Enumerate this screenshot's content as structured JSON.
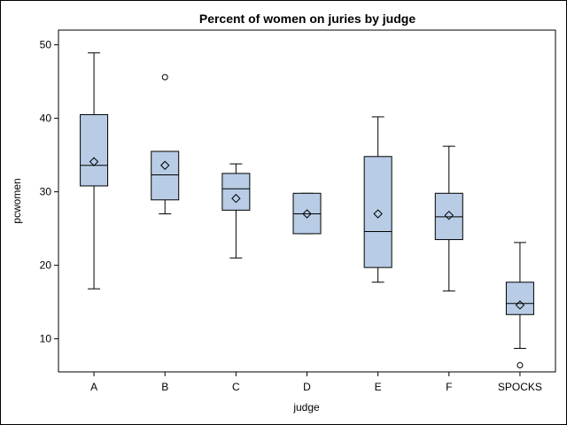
{
  "chart_data": {
    "type": "box",
    "title": "Percent of women on juries by judge",
    "xlabel": "judge",
    "ylabel": "pcwomen",
    "ylim": [
      5.5,
      52
    ],
    "yticks": [
      10,
      20,
      30,
      40,
      50
    ],
    "grid": false,
    "legend": "none",
    "colors": {
      "box_fill": "#b8cce6",
      "stroke": "#000000",
      "background": "#ffffff"
    },
    "categories": [
      "A",
      "B",
      "C",
      "D",
      "E",
      "F",
      "SPOCKS"
    ],
    "boxes": [
      {
        "category": "A",
        "min": 16.8,
        "q1": 30.8,
        "median": 33.6,
        "q3": 40.5,
        "max": 48.9,
        "mean": 34.1,
        "outliers": []
      },
      {
        "category": "B",
        "min": 27.0,
        "q1": 28.9,
        "median": 32.3,
        "q3": 35.5,
        "max": 35.5,
        "mean": 33.6,
        "outliers": [
          45.6
        ]
      },
      {
        "category": "C",
        "min": 21.0,
        "q1": 27.5,
        "median": 30.4,
        "q3": 32.5,
        "max": 33.8,
        "mean": 29.1,
        "outliers": []
      },
      {
        "category": "D",
        "min": 24.3,
        "q1": 24.3,
        "median": 27.0,
        "q3": 29.8,
        "max": 29.8,
        "mean": 27.0,
        "outliers": []
      },
      {
        "category": "E",
        "min": 17.7,
        "q1": 19.7,
        "median": 24.6,
        "q3": 34.8,
        "max": 40.2,
        "mean": 27.0,
        "outliers": []
      },
      {
        "category": "F",
        "min": 16.5,
        "q1": 23.5,
        "median": 26.6,
        "q3": 29.8,
        "max": 36.2,
        "mean": 26.8,
        "outliers": []
      },
      {
        "category": "SPOCKS",
        "min": 8.7,
        "q1": 13.3,
        "median": 14.8,
        "q3": 17.7,
        "max": 23.1,
        "mean": 14.6,
        "outliers": [
          6.4
        ]
      }
    ]
  }
}
